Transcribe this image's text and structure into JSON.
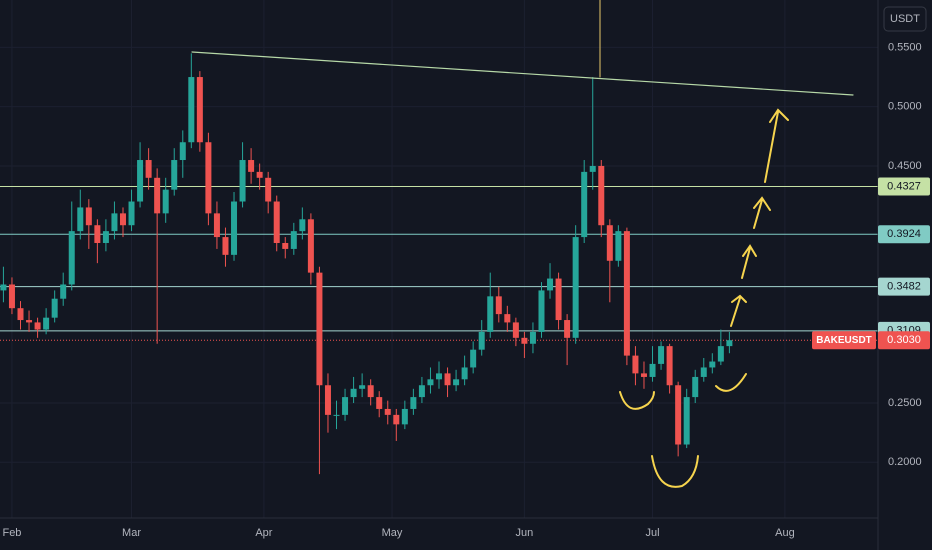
{
  "chart_data": {
    "type": "candlestick",
    "symbol": "BAKEUSDT",
    "currency": "USDT",
    "colors": {
      "up": "#26a69a",
      "down": "#ef5350",
      "grid": "#1c2030"
    },
    "grid": true,
    "xlim": [
      -2.8,
      202.8
    ],
    "xticks": [
      {
        "value": 0,
        "label": "Feb"
      },
      {
        "value": 28,
        "label": "Mar"
      },
      {
        "value": 59,
        "label": "Apr"
      },
      {
        "value": 89,
        "label": "May"
      },
      {
        "value": 120,
        "label": "Jun"
      },
      {
        "value": 150,
        "label": "Jul"
      },
      {
        "value": 181,
        "label": "Aug"
      }
    ],
    "ylim": [
      0.153,
      0.59
    ],
    "yticks": [
      {
        "value": 0.55,
        "label": "0.5500"
      },
      {
        "value": 0.5,
        "label": "0.5000"
      },
      {
        "value": 0.45,
        "label": "0.4500"
      },
      {
        "value": 0.25,
        "label": "0.2500"
      },
      {
        "value": 0.2,
        "label": "0.2000"
      }
    ],
    "x": [
      -2,
      0,
      2,
      4,
      6,
      8,
      10,
      12,
      14,
      16,
      18,
      20,
      22,
      24,
      26,
      28,
      30,
      32,
      34,
      36,
      38,
      40,
      42,
      44,
      46,
      48,
      50,
      52,
      54,
      56,
      58,
      60,
      62,
      64,
      66,
      68,
      70,
      72,
      74,
      76,
      78,
      80,
      82,
      84,
      86,
      88,
      90,
      92,
      94,
      96,
      98,
      100,
      102,
      104,
      106,
      108,
      110,
      112,
      114,
      116,
      118,
      120,
      122,
      124,
      126,
      128,
      130,
      132,
      134,
      136,
      138,
      140,
      142,
      144,
      146,
      148,
      150,
      152,
      154,
      156,
      158,
      160,
      162,
      164,
      166,
      168
    ],
    "open": [
      0.345,
      0.35,
      0.33,
      0.32,
      0.318,
      0.312,
      0.322,
      0.338,
      0.35,
      0.395,
      0.415,
      0.4,
      0.385,
      0.395,
      0.41,
      0.4,
      0.42,
      0.455,
      0.44,
      0.41,
      0.43,
      0.455,
      0.47,
      0.525,
      0.47,
      0.41,
      0.39,
      0.375,
      0.42,
      0.455,
      0.445,
      0.44,
      0.42,
      0.385,
      0.38,
      0.395,
      0.405,
      0.36,
      0.265,
      0.24,
      0.24,
      0.255,
      0.262,
      0.265,
      0.255,
      0.245,
      0.24,
      0.232,
      0.245,
      0.255,
      0.265,
      0.27,
      0.275,
      0.265,
      0.27,
      0.28,
      0.295,
      0.31,
      0.34,
      0.325,
      0.318,
      0.305,
      0.3,
      0.31,
      0.345,
      0.355,
      0.32,
      0.305,
      0.39,
      0.445,
      0.45,
      0.4,
      0.37,
      0.395,
      0.29,
      0.275,
      0.272,
      0.283,
      0.298,
      0.265,
      0.215,
      0.255,
      0.272,
      0.28,
      0.285,
      0.298
    ],
    "high": [
      0.365,
      0.356,
      0.336,
      0.328,
      0.322,
      0.33,
      0.345,
      0.36,
      0.42,
      0.43,
      0.422,
      0.405,
      0.405,
      0.42,
      0.415,
      0.43,
      0.47,
      0.465,
      0.448,
      0.44,
      0.465,
      0.48,
      0.545,
      0.53,
      0.478,
      0.42,
      0.398,
      0.428,
      0.47,
      0.465,
      0.452,
      0.445,
      0.425,
      0.39,
      0.402,
      0.415,
      0.41,
      0.365,
      0.275,
      0.252,
      0.262,
      0.272,
      0.275,
      0.27,
      0.26,
      0.252,
      0.245,
      0.252,
      0.262,
      0.272,
      0.28,
      0.285,
      0.28,
      0.278,
      0.29,
      0.302,
      0.32,
      0.36,
      0.348,
      0.332,
      0.322,
      0.31,
      0.318,
      0.352,
      0.368,
      0.36,
      0.325,
      0.4,
      0.455,
      0.525,
      0.455,
      0.405,
      0.4,
      0.398,
      0.298,
      0.285,
      0.298,
      0.302,
      0.3,
      0.268,
      0.262,
      0.278,
      0.288,
      0.292,
      0.312,
      0.31
    ],
    "low": [
      0.335,
      0.325,
      0.312,
      0.31,
      0.305,
      0.308,
      0.318,
      0.332,
      0.345,
      0.388,
      0.38,
      0.368,
      0.378,
      0.388,
      0.39,
      0.395,
      0.415,
      0.43,
      0.3,
      0.402,
      0.425,
      0.44,
      0.465,
      0.462,
      0.4,
      0.38,
      0.365,
      0.37,
      0.415,
      0.435,
      0.43,
      0.41,
      0.378,
      0.372,
      0.375,
      0.388,
      0.35,
      0.19,
      0.225,
      0.228,
      0.235,
      0.25,
      0.255,
      0.248,
      0.238,
      0.232,
      0.218,
      0.228,
      0.24,
      0.25,
      0.258,
      0.262,
      0.255,
      0.26,
      0.265,
      0.275,
      0.29,
      0.305,
      0.318,
      0.31,
      0.298,
      0.288,
      0.292,
      0.305,
      0.338,
      0.312,
      0.282,
      0.3,
      0.385,
      0.43,
      0.39,
      0.335,
      0.365,
      0.282,
      0.265,
      0.262,
      0.268,
      0.278,
      0.258,
      0.205,
      0.212,
      0.25,
      0.268,
      0.275,
      0.282,
      0.292
    ],
    "close": [
      0.35,
      0.33,
      0.32,
      0.318,
      0.312,
      0.322,
      0.338,
      0.35,
      0.395,
      0.415,
      0.4,
      0.385,
      0.395,
      0.41,
      0.4,
      0.42,
      0.455,
      0.44,
      0.41,
      0.43,
      0.455,
      0.47,
      0.525,
      0.47,
      0.41,
      0.39,
      0.375,
      0.42,
      0.455,
      0.445,
      0.44,
      0.42,
      0.385,
      0.38,
      0.395,
      0.405,
      0.36,
      0.265,
      0.24,
      0.24,
      0.255,
      0.262,
      0.265,
      0.255,
      0.245,
      0.24,
      0.232,
      0.245,
      0.255,
      0.265,
      0.27,
      0.275,
      0.265,
      0.27,
      0.28,
      0.295,
      0.31,
      0.34,
      0.325,
      0.318,
      0.305,
      0.3,
      0.31,
      0.345,
      0.355,
      0.32,
      0.305,
      0.39,
      0.445,
      0.45,
      0.4,
      0.37,
      0.395,
      0.29,
      0.275,
      0.272,
      0.283,
      0.298,
      0.265,
      0.215,
      0.255,
      0.272,
      0.28,
      0.285,
      0.298,
      0.303
    ],
    "levels": [
      {
        "value": 0.4327,
        "color": "#c5e1a5"
      },
      {
        "value": 0.3924,
        "color": "#80cbc4"
      },
      {
        "value": 0.3482,
        "color": "#a5d6d0"
      },
      {
        "value": 0.3109,
        "color": "#a5d6d0"
      }
    ],
    "last_price": {
      "value": 0.303,
      "label": "0.3030",
      "color": "#ef5350"
    }
  }
}
